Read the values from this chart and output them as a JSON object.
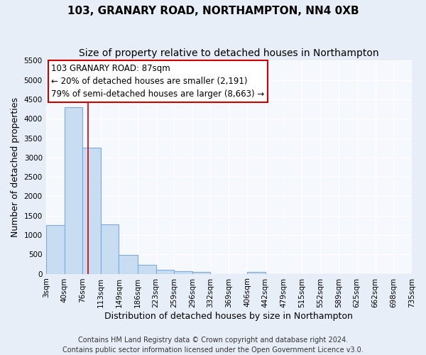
{
  "title": "103, GRANARY ROAD, NORTHAMPTON, NN4 0XB",
  "subtitle": "Size of property relative to detached houses in Northampton",
  "xlabel": "Distribution of detached houses by size in Northampton",
  "ylabel": "Number of detached properties",
  "footnote1": "Contains HM Land Registry data © Crown copyright and database right 2024.",
  "footnote2": "Contains public sector information licensed under the Open Government Licence v3.0.",
  "bar_edges": [
    3,
    40,
    76,
    113,
    149,
    186,
    223,
    259,
    296,
    332,
    369,
    406,
    442,
    479,
    515,
    552,
    589,
    625,
    662,
    698,
    735
  ],
  "bar_heights": [
    1260,
    4300,
    3250,
    1280,
    480,
    230,
    95,
    65,
    55,
    0,
    0,
    55,
    0,
    0,
    0,
    0,
    0,
    0,
    0,
    0
  ],
  "bar_color": "#c9ddf2",
  "bar_edge_color": "#7aabdc",
  "property_line_x": 87,
  "property_line_color": "#cc0000",
  "annotation_line1": "103 GRANARY ROAD: 87sqm",
  "annotation_line2": "← 20% of detached houses are smaller (2,191)",
  "annotation_line3": "79% of semi-detached houses are larger (8,663) →",
  "annotation_box_color": "#ffffff",
  "annotation_box_edge_color": "#cc0000",
  "ylim": [
    0,
    5500
  ],
  "yticks": [
    0,
    500,
    1000,
    1500,
    2000,
    2500,
    3000,
    3500,
    4000,
    4500,
    5000,
    5500
  ],
  "tick_labels": [
    "3sqm",
    "40sqm",
    "76sqm",
    "113sqm",
    "149sqm",
    "186sqm",
    "223sqm",
    "259sqm",
    "296sqm",
    "332sqm",
    "369sqm",
    "406sqm",
    "442sqm",
    "479sqm",
    "515sqm",
    "552sqm",
    "589sqm",
    "625sqm",
    "662sqm",
    "698sqm",
    "735sqm"
  ],
  "figure_background_color": "#e8eef8",
  "axes_background_color": "#f5f8fd",
  "grid_color": "#ffffff",
  "title_fontsize": 11,
  "subtitle_fontsize": 10,
  "axis_label_fontsize": 9,
  "tick_fontsize": 7.5,
  "footnote_fontsize": 7
}
